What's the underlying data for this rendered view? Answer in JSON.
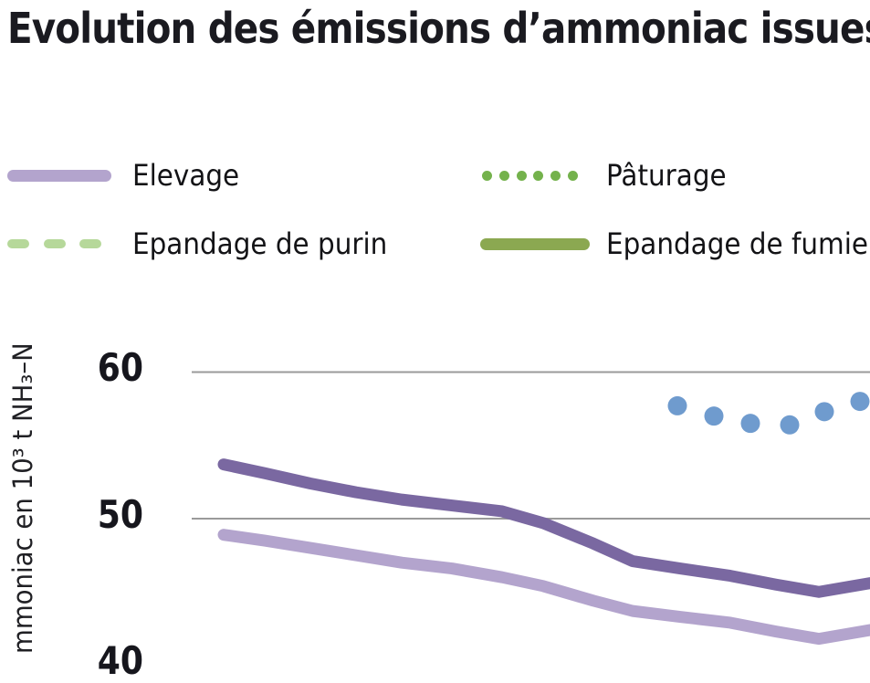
{
  "title": "Evolution des émissions d’ammoniac issues de",
  "y_axis": {
    "label_visible": "mmoniac en 10³ t NH₃–N",
    "ticks": [
      "60",
      "50",
      "40"
    ]
  },
  "legend": {
    "items": [
      {
        "label": "Elevage",
        "style": "solid",
        "color": "#b3a4cd"
      },
      {
        "label": "Pâturage",
        "style": "dotted",
        "color": "#74b24c"
      },
      {
        "label": "Epandage de purin",
        "style": "dashed",
        "color": "#b6d89a"
      },
      {
        "label": "Epandage de fumier",
        "style": "solid",
        "color": "#8ba851"
      }
    ]
  },
  "chart_data": {
    "type": "line",
    "title": "Evolution des émissions d’ammoniac issues de",
    "ylabel": "mmoniac en 10³ t NH₃–N",
    "y_ticks": [
      60,
      50,
      40
    ],
    "ylim_visible": [
      40.8,
      62
    ],
    "grid": true,
    "gridline_values": [
      60,
      50
    ],
    "colors": {
      "gridline": "#9a9a9a",
      "tick_text": "#16161d",
      "title_text": "#1a1a20"
    },
    "series": [
      {
        "name": "serie_violet_fonce",
        "style": "solid",
        "color": "#7a68a1",
        "points": [
          [
            245,
            53.7
          ],
          [
            290,
            53.1
          ],
          [
            340,
            52.4
          ],
          [
            390,
            51.8
          ],
          [
            440,
            51.3
          ],
          [
            495,
            50.9
          ],
          [
            550,
            50.5
          ],
          [
            595,
            49.7
          ],
          [
            650,
            48.3
          ],
          [
            693,
            47.1
          ],
          [
            745,
            46.6
          ],
          [
            800,
            46.1
          ],
          [
            850,
            45.5
          ],
          [
            897,
            45.0
          ],
          [
            953,
            45.6
          ]
        ]
      },
      {
        "name": "elevage",
        "style": "solid",
        "color": "#b3a4cd",
        "points": [
          [
            245,
            48.9
          ],
          [
            290,
            48.5
          ],
          [
            340,
            48.0
          ],
          [
            390,
            47.5
          ],
          [
            440,
            47.0
          ],
          [
            495,
            46.6
          ],
          [
            550,
            46.0
          ],
          [
            595,
            45.4
          ],
          [
            650,
            44.4
          ],
          [
            693,
            43.7
          ],
          [
            745,
            43.3
          ],
          [
            800,
            42.9
          ],
          [
            850,
            42.3
          ],
          [
            897,
            41.8
          ],
          [
            953,
            42.4
          ]
        ]
      },
      {
        "name": "serie_points_bleus",
        "style": "dots",
        "color": "#6f9bce",
        "points": [
          [
            742,
            57.7
          ],
          [
            782,
            57.0
          ],
          [
            822,
            56.5
          ],
          [
            865,
            56.4
          ],
          [
            903,
            57.3
          ],
          [
            942,
            58.0
          ]
        ]
      }
    ]
  }
}
